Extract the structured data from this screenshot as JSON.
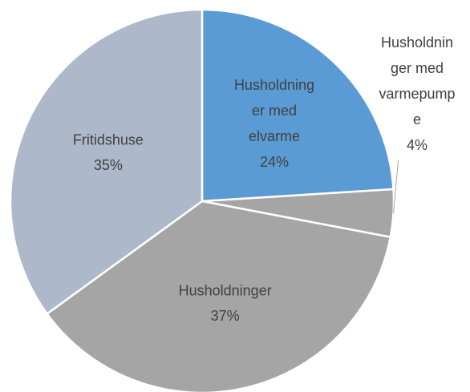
{
  "chart_data": {
    "type": "pie",
    "categories": [
      "Husholdninger med elvarme",
      "Husholdninger med varmepumpe",
      "Husholdninger",
      "Fritidshuse"
    ],
    "values": [
      24,
      4,
      37,
      35
    ],
    "value_labels": [
      "24%",
      "4%",
      "37%",
      "35%"
    ],
    "colors": [
      "#5b9bd5",
      "#a5a5a5",
      "#a5a5a5",
      "#adb9ca"
    ]
  }
}
